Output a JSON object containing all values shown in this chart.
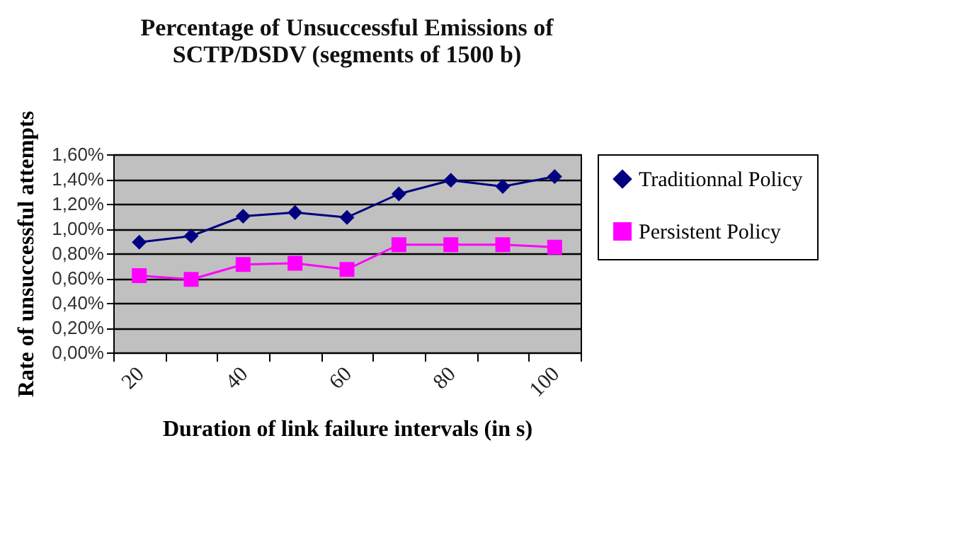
{
  "chart_data": {
    "type": "line",
    "title": "Percentage of Unsuccessful Emissions of SCTP/DSDV (segments of 1500 b)",
    "xlabel": "Duration of link failure intervals (in s)",
    "ylabel": "Rate of unsuccessful attempts",
    "categories": [
      "20",
      null,
      "40",
      null,
      "60",
      null,
      "80",
      null,
      "100"
    ],
    "series": [
      {
        "name": "Traditionnal Policy",
        "color": "#000080",
        "marker": "diamond",
        "values": [
          0.89,
          0.94,
          1.1,
          1.13,
          1.09,
          1.28,
          1.39,
          1.34,
          1.42
        ]
      },
      {
        "name": "Persistent Policy",
        "color": "#ff00ff",
        "marker": "square",
        "values": [
          0.62,
          0.59,
          0.71,
          0.72,
          0.67,
          0.87,
          0.87,
          0.87,
          0.85
        ]
      }
    ],
    "ylim": [
      0,
      1.6
    ],
    "yticks": [
      {
        "value": 0,
        "label": "0,00%"
      },
      {
        "value": 0.2,
        "label": "0,20%"
      },
      {
        "value": 0.4,
        "label": "0,40%"
      },
      {
        "value": 0.6,
        "label": "0,60%"
      },
      {
        "value": 0.8,
        "label": "0,80%"
      },
      {
        "value": 1.0,
        "label": "1,00%"
      },
      {
        "value": 1.2,
        "label": "1,20%"
      },
      {
        "value": 1.4,
        "label": "1,40%"
      },
      {
        "value": 1.6,
        "label": "1,60%"
      }
    ],
    "grid": "y",
    "legend": "right",
    "line_style": "solid"
  }
}
